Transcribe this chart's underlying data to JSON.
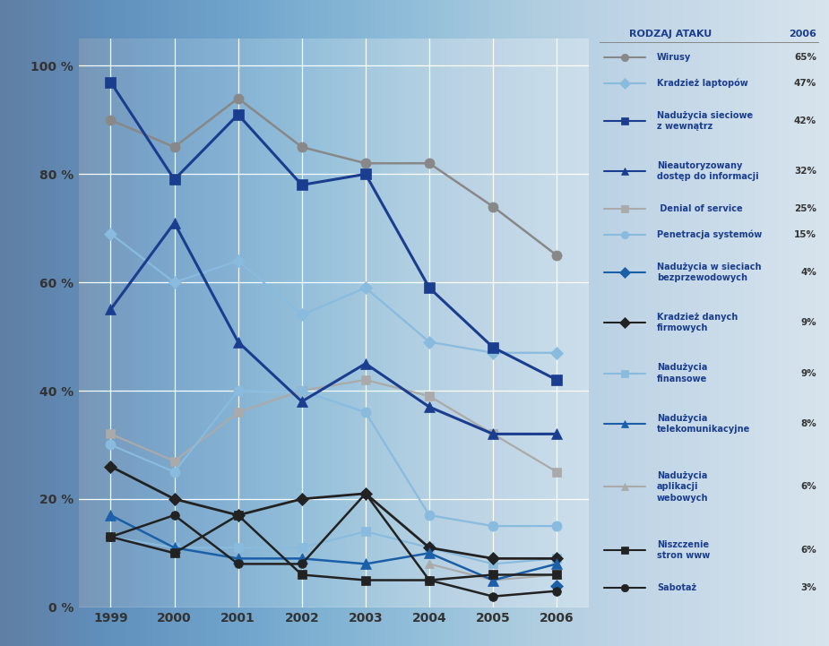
{
  "years": [
    1999,
    2000,
    2001,
    2002,
    2003,
    2004,
    2005,
    2006
  ],
  "series": [
    {
      "name": "Wirusy",
      "value_2006": "65%",
      "color": "#888888",
      "linecolor": "#888888",
      "marker": "o",
      "markersize": 8,
      "linewidth": 1.8,
      "zorder": 4,
      "data": [
        90,
        85,
        94,
        85,
        82,
        82,
        74,
        65
      ]
    },
    {
      "name": "Kradzież laptopów",
      "value_2006": "47%",
      "color": "#88bbdd",
      "linecolor": "#88bbdd",
      "marker": "D",
      "markersize": 7,
      "linewidth": 1.6,
      "zorder": 4,
      "data": [
        69,
        60,
        64,
        54,
        59,
        49,
        47,
        47
      ]
    },
    {
      "name": "Nadużycia sieciowe z wewnątrz",
      "value_2006": "42%",
      "color": "#1a3d8f",
      "linecolor": "#1a3d8f",
      "marker": "s",
      "markersize": 8,
      "linewidth": 2.2,
      "zorder": 6,
      "data": [
        97,
        79,
        91,
        78,
        80,
        59,
        48,
        42
      ]
    },
    {
      "name": "Nieautoryzowany dostęp do informacji",
      "value_2006": "32%",
      "color": "#1a3d8f",
      "linecolor": "#1a3d8f",
      "marker": "^",
      "markersize": 9,
      "linewidth": 2.2,
      "zorder": 6,
      "data": [
        55,
        71,
        49,
        38,
        45,
        37,
        32,
        32
      ]
    },
    {
      "name": "Denial of service",
      "value_2006": "25%",
      "color": "#aaaaaa",
      "linecolor": "#aaaaaa",
      "marker": "s",
      "markersize": 7,
      "linewidth": 1.6,
      "zorder": 4,
      "data": [
        32,
        27,
        36,
        40,
        42,
        39,
        32,
        25
      ]
    },
    {
      "name": "Penetracja systemów",
      "value_2006": "15%",
      "color": "#88bbdd",
      "linecolor": "#88bbdd",
      "marker": "o",
      "markersize": 8,
      "linewidth": 1.6,
      "zorder": 4,
      "data": [
        30,
        25,
        40,
        40,
        36,
        17,
        15,
        15
      ]
    },
    {
      "name": "Nadużycia w sieciach bezprzewodowych",
      "value_2006": "4%",
      "color": "#1a5fa8",
      "linecolor": "#1a5fa8",
      "marker": "D",
      "markersize": 7,
      "linewidth": 2.0,
      "zorder": 5,
      "data": [
        null,
        null,
        null,
        null,
        null,
        null,
        null,
        4
      ]
    },
    {
      "name": "Kradzież danych firmowych",
      "value_2006": "9%",
      "color": "#222222",
      "linecolor": "#222222",
      "marker": "D",
      "markersize": 7,
      "linewidth": 2.0,
      "zorder": 5,
      "data": [
        26,
        20,
        17,
        20,
        21,
        11,
        9,
        9
      ]
    },
    {
      "name": "Nadużycia finansowe",
      "value_2006": "9%",
      "color": "#88bbdd",
      "linecolor": "#88bbdd",
      "marker": "s",
      "markersize": 7,
      "linewidth": 1.5,
      "zorder": 4,
      "data": [
        13,
        11,
        11,
        11,
        14,
        11,
        8,
        9
      ]
    },
    {
      "name": "Nadużycia telekomunikacyjne",
      "value_2006": "8%",
      "color": "#1a5fa8",
      "linecolor": "#1a5fa8",
      "marker": "^",
      "markersize": 8,
      "linewidth": 1.8,
      "zorder": 5,
      "data": [
        17,
        11,
        9,
        9,
        8,
        10,
        5,
        8
      ]
    },
    {
      "name": "Nadużycia aplikacji webowych",
      "value_2006": "6%",
      "color": "#aaaaaa",
      "linecolor": "#aaaaaa",
      "marker": "^",
      "markersize": 7,
      "linewidth": 1.5,
      "zorder": 4,
      "data": [
        null,
        null,
        null,
        null,
        null,
        8,
        5,
        6
      ]
    },
    {
      "name": "Niszczenie stron www",
      "value_2006": "6%",
      "color": "#222222",
      "linecolor": "#222222",
      "marker": "s",
      "markersize": 7,
      "linewidth": 1.8,
      "zorder": 5,
      "data": [
        13,
        10,
        17,
        6,
        5,
        5,
        6,
        6
      ]
    },
    {
      "name": "Sabotaż",
      "value_2006": "3%",
      "color": "#222222",
      "linecolor": "#222222",
      "marker": "o",
      "markersize": 7,
      "linewidth": 1.8,
      "zorder": 5,
      "data": [
        13,
        17,
        8,
        8,
        21,
        5,
        2,
        3
      ]
    }
  ],
  "ylim": [
    0,
    105
  ],
  "yticks": [
    0,
    20,
    40,
    60,
    80,
    100
  ],
  "ytick_labels": [
    "0 %",
    "20 %",
    "40 %",
    "60 %",
    "80 %",
    "100 %"
  ],
  "legend_entries": [
    {
      "name": "Wirusy",
      "val": "65%",
      "color": "#888888",
      "marker": "o",
      "lc": "#888888",
      "multiline": false
    },
    {
      "name": "Kradzież laptopów",
      "val": "47%",
      "color": "#88bbdd",
      "marker": "D",
      "lc": "#88bbdd",
      "multiline": false
    },
    {
      "name": "Nadużycia sieciowe\nz wewnątrz",
      "val": "42%",
      "color": "#1a3d8f",
      "marker": "s",
      "lc": "#1a3d8f",
      "multiline": true
    },
    {
      "name": "Nieautoryzowany\ndostęp do informacji",
      "val": "32%",
      "color": "#1a3d8f",
      "marker": "^",
      "lc": "#1a3d8f",
      "multiline": true
    },
    {
      "name": " Denial of service",
      "val": "25%",
      "color": "#aaaaaa",
      "marker": "s",
      "lc": "#aaaaaa",
      "multiline": false
    },
    {
      "name": "Penetracja systemów",
      "val": "15%",
      "color": "#88bbdd",
      "marker": "o",
      "lc": "#88bbdd",
      "multiline": false
    },
    {
      "name": "Nadużycia w sieciach\nbezprzewodowych",
      "val": "4%",
      "color": "#1a5fa8",
      "marker": "D",
      "lc": "#1a5fa8",
      "multiline": true
    },
    {
      "name": "Kradzież danych\nfirmowych",
      "val": "9%",
      "color": "#222222",
      "marker": "D",
      "lc": "#222222",
      "multiline": true
    },
    {
      "name": "Nadużycia\nfinansowe",
      "val": "9%",
      "color": "#88bbdd",
      "marker": "s",
      "lc": "#88bbdd",
      "multiline": true
    },
    {
      "name": "Nadużycia\ntelekomunikacyjne",
      "val": "8%",
      "color": "#1a5fa8",
      "marker": "^",
      "lc": "#1a5fa8",
      "multiline": true
    },
    {
      "name": "Nadużycia\naplikacji\nwebowych",
      "val": "6%",
      "color": "#aaaaaa",
      "marker": "^",
      "lc": "#aaaaaa",
      "multiline": true
    },
    {
      "name": "Niszczenie\nstron www",
      "val": "6%",
      "color": "#222222",
      "marker": "s",
      "lc": "#222222",
      "multiline": true
    },
    {
      "name": "Sabotaż",
      "val": "3%",
      "color": "#222222",
      "marker": "o",
      "lc": "#222222",
      "multiline": false
    }
  ]
}
